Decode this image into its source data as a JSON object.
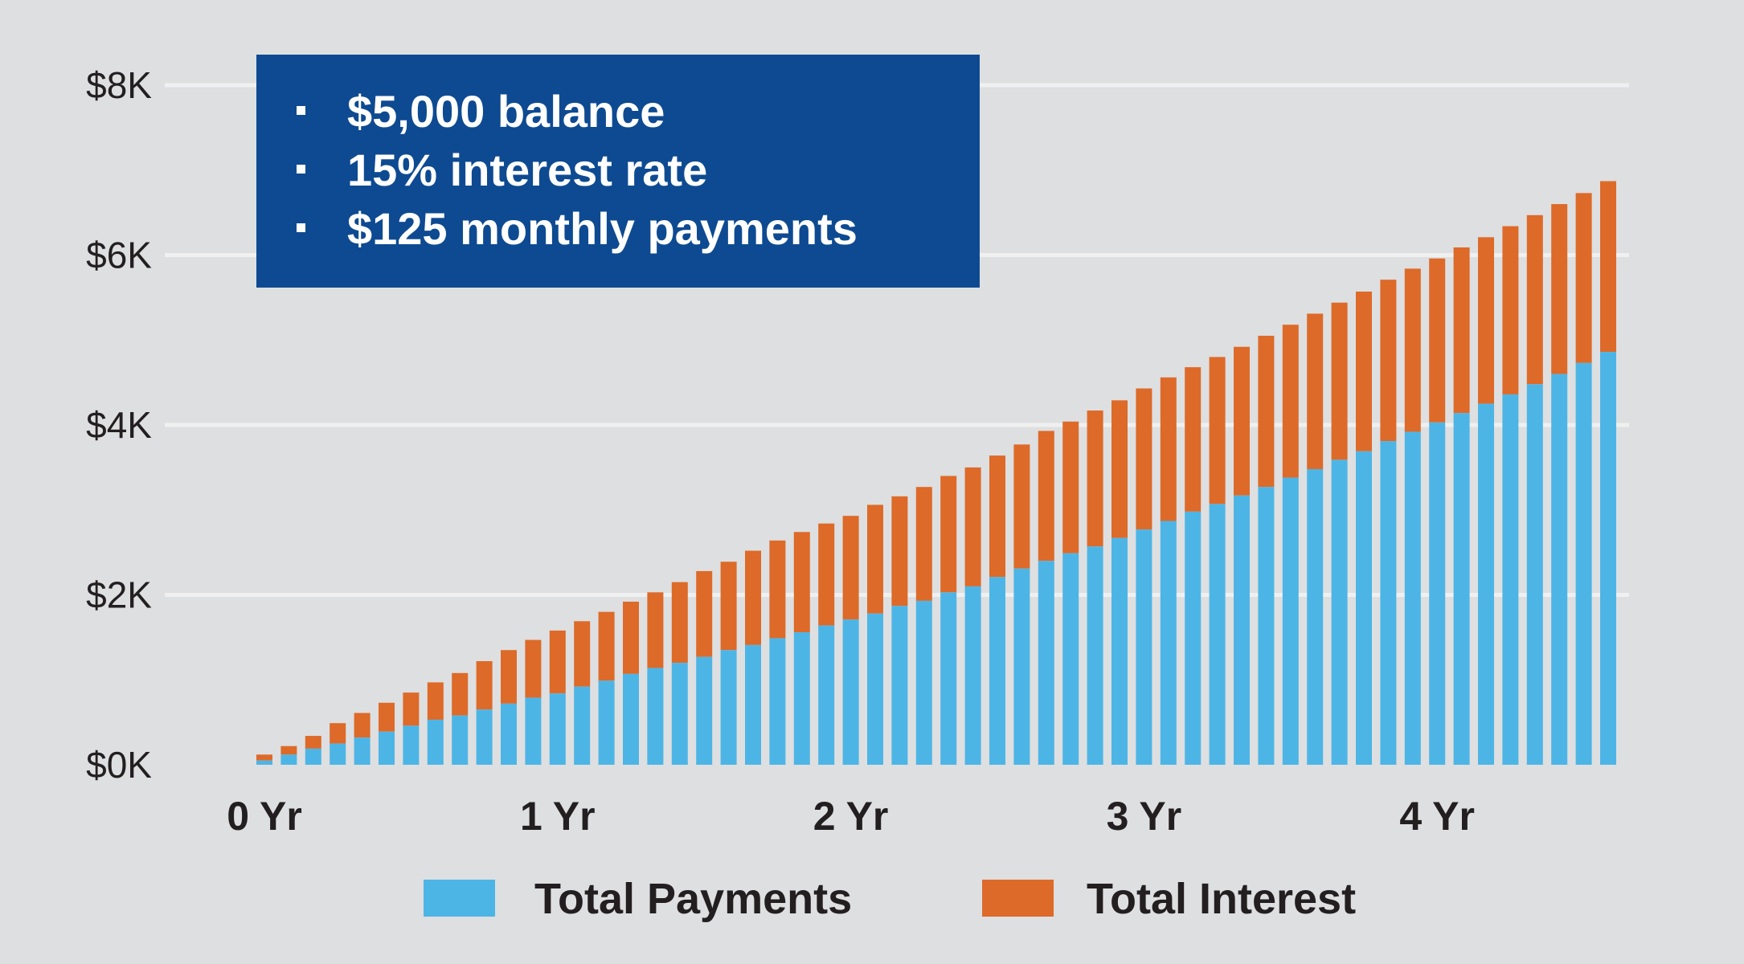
{
  "colors": {
    "background": "#dedfe0",
    "gridline": "#f0f0f1",
    "payments": "#4db5e6",
    "interest": "#dd6a29",
    "info_box": "#0e4a91",
    "text": "#231f20"
  },
  "info_box": {
    "items": [
      "$5,000 balance",
      "15% interest rate",
      "$125 monthly payments"
    ]
  },
  "chart_data": {
    "type": "bar",
    "stacked": true,
    "ylim": [
      0,
      8000
    ],
    "y_ticks": [
      {
        "value": 0,
        "label": "$0K"
      },
      {
        "value": 2000,
        "label": "$2K"
      },
      {
        "value": 4000,
        "label": "$4K"
      },
      {
        "value": 6000,
        "label": "$6K"
      },
      {
        "value": 8000,
        "label": "$8K"
      }
    ],
    "x_ticks": [
      {
        "month": 1,
        "label": "0 Yr"
      },
      {
        "month": 13,
        "label": "1 Yr"
      },
      {
        "month": 25,
        "label": "2 Yr"
      },
      {
        "month": 37,
        "label": "3 Yr"
      },
      {
        "month": 49,
        "label": "4 Yr"
      }
    ],
    "months": [
      1,
      2,
      3,
      4,
      5,
      6,
      7,
      8,
      9,
      10,
      11,
      12,
      13,
      14,
      15,
      16,
      17,
      18,
      19,
      20,
      21,
      22,
      23,
      24,
      25,
      26,
      27,
      28,
      29,
      30,
      31,
      32,
      33,
      34,
      35,
      36,
      37,
      38,
      39,
      40,
      41,
      42,
      43,
      44,
      45,
      46,
      47,
      48,
      49,
      50,
      51,
      52,
      53,
      54,
      55,
      56
    ],
    "grid": true,
    "legend_position": "bottom",
    "series": [
      {
        "name": "Total Payments",
        "color": "#4db5e6",
        "values": [
          50,
          120,
          190,
          250,
          320,
          390,
          460,
          530,
          580,
          650,
          720,
          790,
          840,
          920,
          990,
          1070,
          1140,
          1200,
          1270,
          1350,
          1410,
          1490,
          1560,
          1640,
          1710,
          1780,
          1870,
          1930,
          2030,
          2100,
          2210,
          2310,
          2400,
          2490,
          2570,
          2670,
          2770,
          2870,
          2980,
          3070,
          3170,
          3270,
          3380,
          3480,
          3590,
          3690,
          3810,
          3920,
          4030,
          4140,
          4250,
          4360,
          4480,
          4600,
          4730,
          4860
        ]
      },
      {
        "name": "Total Interest",
        "color": "#dd6a29",
        "values": [
          70,
          100,
          150,
          240,
          290,
          340,
          390,
          440,
          500,
          570,
          630,
          680,
          740,
          770,
          810,
          850,
          890,
          950,
          1010,
          1040,
          1110,
          1150,
          1180,
          1200,
          1220,
          1280,
          1290,
          1340,
          1370,
          1400,
          1430,
          1460,
          1530,
          1550,
          1600,
          1620,
          1660,
          1690,
          1700,
          1730,
          1750,
          1780,
          1800,
          1830,
          1850,
          1880,
          1900,
          1920,
          1930,
          1950,
          1960,
          1980,
          1990,
          2000,
          2000,
          2010
        ]
      }
    ],
    "title": "",
    "xlabel": "",
    "ylabel": ""
  }
}
